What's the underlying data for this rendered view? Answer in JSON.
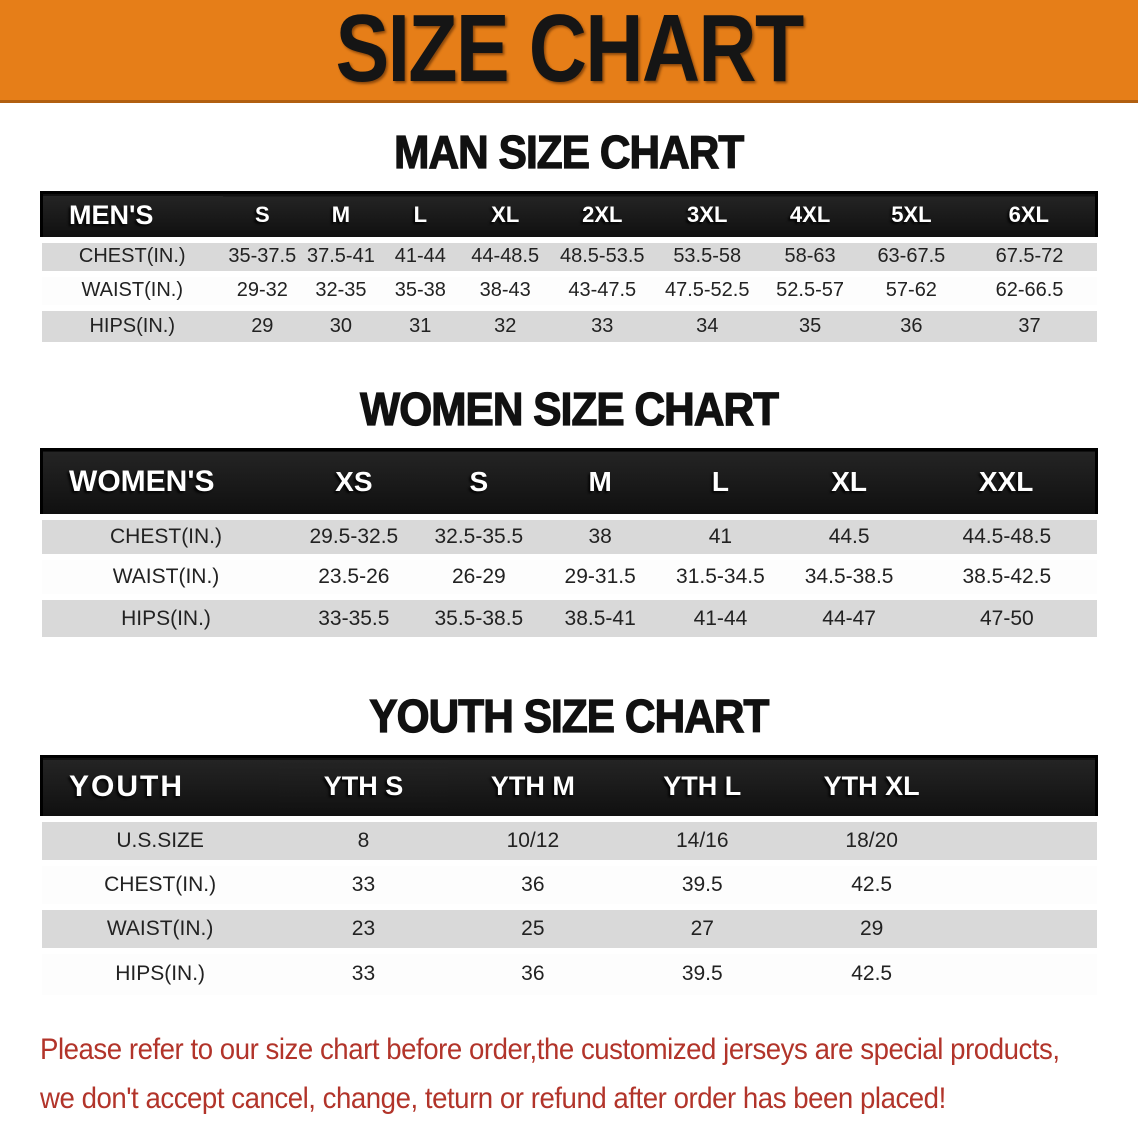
{
  "colors": {
    "banner_bg": "#E67E18",
    "header_bg": "#161616",
    "row_gray": "#D9D9D9",
    "row_white": "#FDFDFD",
    "footer_red": "#B2342A"
  },
  "banner": {
    "title": "SIZE CHART"
  },
  "sections": {
    "men": {
      "heading": "MAN SIZE CHART",
      "table": {
        "columns": [
          "MEN'S",
          "S",
          "M",
          "L",
          "XL",
          "2XL",
          "3XL",
          "4XL",
          "5XL",
          "6XL"
        ],
        "rows": [
          {
            "label": "CHEST(IN.)",
            "values": [
              "35-37.5",
              "37.5-41",
              "41-44",
              "44-48.5",
              "48.5-53.5",
              "53.5-58",
              "58-63",
              "63-67.5",
              "67.5-72"
            ]
          },
          {
            "label": "WAIST(IN.)",
            "values": [
              "29-32",
              "32-35",
              "35-38",
              "38-43",
              "43-47.5",
              "47.5-52.5",
              "52.5-57",
              "57-62",
              "62-66.5"
            ]
          },
          {
            "label": "HIPS(IN.)",
            "values": [
              "29",
              "30",
              "31",
              "32",
              "33",
              "34",
              "35",
              "36",
              "37"
            ]
          }
        ]
      }
    },
    "women": {
      "heading": "WOMEN SIZE CHART",
      "table": {
        "columns": [
          "WOMEN'S",
          "XS",
          "S",
          "M",
          "L",
          "XL",
          "XXL"
        ],
        "rows": [
          {
            "label": "CHEST(IN.)",
            "values": [
              "29.5-32.5",
              "32.5-35.5",
              "38",
              "41",
              "44.5",
              "44.5-48.5"
            ]
          },
          {
            "label": "WAIST(IN.)",
            "values": [
              "23.5-26",
              "26-29",
              "29-31.5",
              "31.5-34.5",
              "34.5-38.5",
              "38.5-42.5"
            ]
          },
          {
            "label": "HIPS(IN.)",
            "values": [
              "33-35.5",
              "35.5-38.5",
              "38.5-41",
              "41-44",
              "44-47",
              "47-50"
            ]
          }
        ]
      }
    },
    "youth": {
      "heading": "YOUTH SIZE CHART",
      "table": {
        "columns": [
          "YOUTH",
          "YTH S",
          "YTH M",
          "YTH L",
          "YTH XL"
        ],
        "rows": [
          {
            "label": "U.S.SIZE",
            "values": [
              "8",
              "10/12",
              "14/16",
              "18/20"
            ]
          },
          {
            "label": "CHEST(IN.)",
            "values": [
              "33",
              "36",
              "39.5",
              "42.5"
            ]
          },
          {
            "label": "WAIST(IN.)",
            "values": [
              "23",
              "25",
              "27",
              "29"
            ]
          },
          {
            "label": "HIPS(IN.)",
            "values": [
              "33",
              "36",
              "39.5",
              "42.5"
            ]
          }
        ]
      }
    }
  },
  "footer": {
    "lines": [
      "Please refer to our size chart before order,the customized jerseys are special products,",
      "we don't accept cancel, change, teturn or refund after order has been placed!"
    ]
  }
}
